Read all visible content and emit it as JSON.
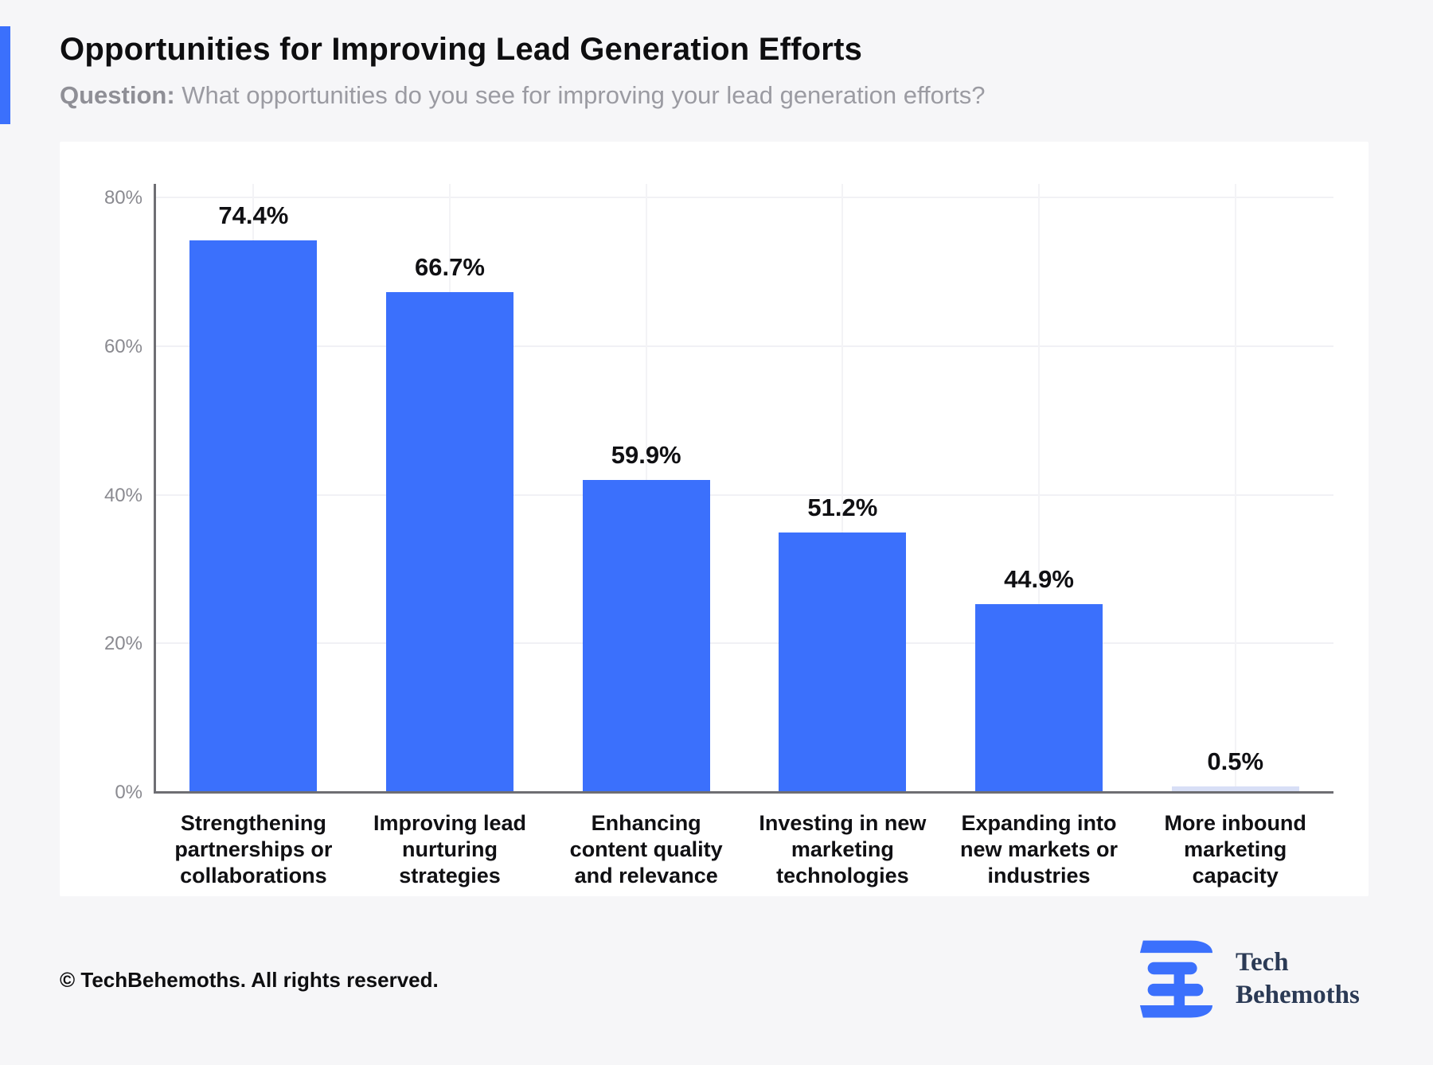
{
  "page": {
    "background": "#f6f6f8",
    "accent_color": "#3B70FC"
  },
  "header": {
    "title": "Opportunities for Improving Lead Generation Efforts",
    "question_label": "Question:",
    "question_text": " What opportunities do you see for improving your lead generation efforts?"
  },
  "chart_data": {
    "type": "bar",
    "title": "Opportunities for Improving Lead Generation Efforts",
    "categories": [
      "Strengthening partnerships or collaborations",
      "Improving lead nurturing strategies",
      "Enhancing content quality and relevance",
      "Investing in new marketing technologies",
      "Expanding into new markets or industries",
      "More inbound marketing capacity"
    ],
    "values": [
      74.4,
      66.7,
      59.9,
      51.2,
      44.9,
      0.5
    ],
    "value_labels": [
      "74.4%",
      "66.7%",
      "59.9%",
      "51.2%",
      "44.9%",
      "0.5%"
    ],
    "bar_display_heights_pct": [
      74.3,
      67.4,
      42.1,
      35.0,
      25.4,
      0.9
    ],
    "bar_colors": [
      "#3B70FC",
      "#3B70FC",
      "#3B70FC",
      "#3B70FC",
      "#3B70FC",
      "#D8DFF6"
    ],
    "xlabel": "",
    "ylabel": "",
    "y_ticks": [
      "0%",
      "20%",
      "40%",
      "60%",
      "80%"
    ],
    "y_tick_values": [
      0,
      20,
      40,
      60,
      80
    ],
    "ylim": [
      0,
      80
    ],
    "grid": true,
    "legend_position": "none"
  },
  "footer": {
    "copyright": "© TechBehemoths. All rights reserved.",
    "logo": {
      "line1": "Tech",
      "line2": "Behemoths",
      "mark_color": "#3B70FC",
      "text_color": "#2B3A55"
    }
  }
}
